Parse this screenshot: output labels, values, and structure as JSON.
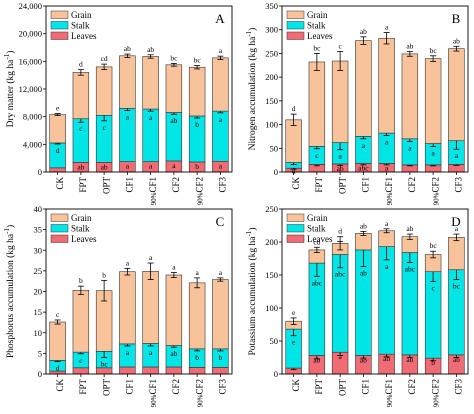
{
  "chart_data": [
    {
      "panel": "A",
      "type": "bar",
      "stacked": true,
      "ylabel": "Dry matter (kg ha$-1$)",
      "ylim": [
        0,
        24000
      ],
      "yticks": [
        0,
        4000,
        8000,
        12000,
        16000,
        20000,
        24000
      ],
      "ytick_labels": [
        "0",
        "4,000",
        "8,000",
        "12,000",
        "16,000",
        "20,000",
        "24,000"
      ],
      "categories": [
        "CK",
        "FPT",
        "OPT",
        "CF1",
        "90%CF1",
        "CF2",
        "90%CF2",
        "CF3"
      ],
      "series": [
        {
          "name": "Leaves",
          "color": "#f06c74",
          "values": [
            600,
            1400,
            1400,
            1500,
            1500,
            1600,
            1450,
            1550
          ],
          "errors": [
            0,
            0,
            0,
            0,
            0,
            0,
            0,
            0
          ],
          "labels": [
            "c",
            "ab",
            "ab",
            "a",
            "a",
            "a",
            "b",
            "a"
          ]
        },
        {
          "name": "Stalk",
          "color": "#00e5e5",
          "values": [
            3600,
            6300,
            6800,
            7700,
            7600,
            7000,
            6650,
            7250
          ],
          "errors": [
            150,
            500,
            800,
            300,
            300,
            250,
            300,
            250
          ],
          "labels": [
            "d",
            "c",
            "c",
            "a",
            "a",
            "ab",
            "b",
            "a"
          ]
        },
        {
          "name": "Grain",
          "color": "#f8c39a",
          "values": [
            4100,
            6700,
            7000,
            7600,
            7600,
            6900,
            7050,
            7700
          ],
          "errors": [
            150,
            400,
            400,
            250,
            250,
            200,
            250,
            250
          ],
          "labels": [
            "e",
            "d",
            "cd",
            "ab",
            "ab",
            "bc",
            "bc",
            "a"
          ]
        }
      ]
    },
    {
      "panel": "B",
      "type": "bar",
      "stacked": true,
      "ylabel": "Nitrogen accumulation (kg ha$-1$)",
      "ylim": [
        0,
        350
      ],
      "yticks": [
        0,
        50,
        100,
        150,
        200,
        250,
        300,
        350
      ],
      "ytick_labels": [
        "0",
        "50",
        "100",
        "150",
        "200",
        "250",
        "300",
        "350"
      ],
      "categories": [
        "CK",
        "FPT",
        "OPT",
        "CF1",
        "90%CF1",
        "CF2",
        "90%CF2",
        "CF3"
      ],
      "series": [
        {
          "name": "Leaves",
          "color": "#f06c74",
          "values": [
            8,
            16,
            17,
            18,
            18,
            15,
            15,
            16
          ],
          "errors": [
            2,
            3,
            3,
            3,
            3,
            2,
            2,
            2
          ],
          "labels": [
            "c",
            "bc",
            "ab",
            "abc",
            "a",
            "c",
            "bc",
            "c"
          ]
        },
        {
          "name": "Stalk",
          "color": "#00e5e5",
          "values": [
            12,
            38,
            45,
            57,
            64,
            55,
            45,
            50
          ],
          "errors": [
            4,
            5,
            15,
            5,
            5,
            6,
            6,
            18
          ],
          "labels": [
            "d",
            "c",
            "a",
            "a",
            "a",
            "a",
            "a",
            "a"
          ]
        },
        {
          "name": "Grain",
          "color": "#f8c39a",
          "values": [
            90,
            178,
            172,
            202,
            200,
            179,
            179,
            194
          ],
          "errors": [
            12,
            18,
            20,
            8,
            12,
            5,
            6,
            5
          ],
          "labels": [
            "d",
            "bc",
            "c",
            "ab",
            "a",
            "ab",
            "bc",
            "ab"
          ]
        }
      ]
    },
    {
      "panel": "C",
      "type": "bar",
      "stacked": true,
      "ylabel": "Phosphorus accumulation (kg ha$-1$)",
      "ylim": [
        0,
        40
      ],
      "yticks": [
        0,
        5,
        10,
        15,
        20,
        25,
        30,
        35,
        40
      ],
      "ytick_labels": [
        "0",
        "5",
        "10",
        "15",
        "20",
        "25",
        "30",
        "35",
        "40"
      ],
      "categories": [
        "CK",
        "FPT",
        "OPT",
        "CF1",
        "90%CF1",
        "CF2",
        "90%CF2",
        "CF3"
      ],
      "series": [
        {
          "name": "Leaves",
          "color": "#f06c74",
          "values": [
            0.7,
            1.5,
            1.5,
            1.7,
            1.7,
            1.7,
            1.6,
            1.6
          ],
          "errors": [
            0,
            0,
            0,
            0,
            0,
            0,
            0,
            0
          ],
          "labels": [
            "c",
            "b",
            "b",
            "a",
            "a",
            "a",
            "a",
            "a"
          ]
        },
        {
          "name": "Stalk",
          "color": "#00e5e5",
          "values": [
            2.6,
            3.8,
            4.0,
            5.6,
            5.7,
            5.2,
            4.5,
            4.5
          ],
          "errors": [
            0.3,
            0.4,
            1.5,
            0.5,
            0.6,
            0.4,
            0.5,
            0.5
          ],
          "labels": [
            "d",
            "c",
            "bc",
            "a",
            "a",
            "ab",
            "b",
            "b"
          ]
        },
        {
          "name": "Grain",
          "color": "#f8c39a",
          "values": [
            9.3,
            15.0,
            14.7,
            17.5,
            17.5,
            17.1,
            16.0,
            16.8
          ],
          "errors": [
            0.5,
            1.0,
            2.5,
            0.8,
            2.0,
            0.6,
            1.2,
            0.4
          ],
          "labels": [
            "c",
            "b",
            "b",
            "a",
            "a",
            "a",
            "a",
            "a"
          ]
        }
      ]
    },
    {
      "panel": "D",
      "type": "bar",
      "stacked": true,
      "ylabel": "Potassium accumulation (kg ha$-1$)",
      "ylim": [
        0,
        250
      ],
      "yticks": [
        0,
        50,
        100,
        150,
        200,
        250
      ],
      "ytick_labels": [
        "0",
        "50",
        "100",
        "150",
        "200",
        "250"
      ],
      "categories": [
        "CK",
        "FPT",
        "OPT",
        "CF1",
        "90%CF1",
        "CF2",
        "90%CF2",
        "CF3"
      ],
      "series": [
        {
          "name": "Leaves",
          "color": "#f06c74",
          "values": [
            9,
            28,
            33,
            28,
            30,
            29,
            24,
            29
          ],
          "errors": [
            2,
            5,
            5,
            4,
            4,
            4,
            4,
            4
          ],
          "labels": [
            "c",
            "ab",
            "a",
            "ab",
            "ab",
            "ab",
            "b",
            "ab"
          ]
        },
        {
          "name": "Stalk",
          "color": "#00e5e5",
          "values": [
            59,
            140,
            148,
            160,
            163,
            155,
            131,
            129
          ],
          "errors": [
            10,
            20,
            20,
            25,
            20,
            15,
            15,
            15
          ],
          "labels": [
            "e",
            "abc",
            "abc",
            "ab",
            "a",
            "abc",
            "c",
            "bc"
          ]
        },
        {
          "name": "Grain",
          "color": "#f8c39a",
          "values": [
            12,
            20,
            17,
            25,
            24,
            24,
            26,
            49
          ],
          "errors": [
            5,
            4,
            10,
            3,
            3,
            4,
            5,
            5
          ],
          "labels": [
            "e",
            "cd",
            "d",
            "ab",
            "a",
            "ab",
            "bc",
            "a"
          ]
        }
      ]
    }
  ]
}
